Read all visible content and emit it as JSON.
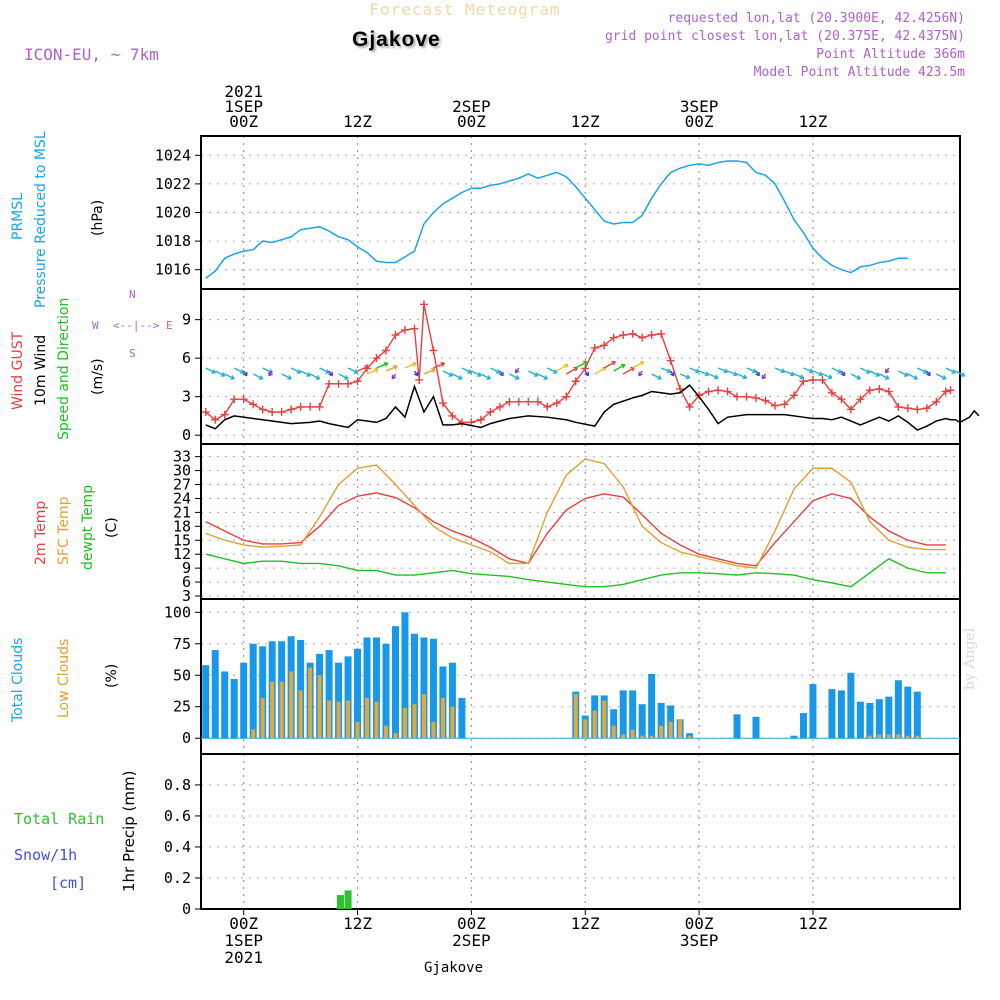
{
  "header": {
    "title": "Forecast Meteogram",
    "location": "Gjakove",
    "model": "ICON-EU, ~ 7km",
    "requested": "requested lon,lat (20.3900E, 42.4256N)",
    "grid_point": "grid point closest lon,lat (20.375E, 42.4375N)",
    "point_altitude": "Point Altitude 366m",
    "model_altitude": "Model Point Altitude 423.5m"
  },
  "footer": {
    "location": "Gjakove",
    "signature": "by Angel"
  },
  "time_axis": {
    "top": [
      {
        "t": 0,
        "lines": [
          "2021",
          "1SEP",
          "00Z"
        ]
      },
      {
        "t": 12,
        "lines": [
          "12Z"
        ]
      },
      {
        "t": 24,
        "lines": [
          "2SEP",
          "00Z"
        ]
      },
      {
        "t": 36,
        "lines": [
          "12Z"
        ]
      },
      {
        "t": 48,
        "lines": [
          "3SEP",
          "00Z"
        ]
      },
      {
        "t": 60,
        "lines": [
          "12Z"
        ]
      }
    ],
    "bottom": [
      {
        "t": 0,
        "lines": [
          "00Z",
          "1SEP",
          "2021"
        ]
      },
      {
        "t": 12,
        "lines": [
          "12Z"
        ]
      },
      {
        "t": 24,
        "lines": [
          "00Z",
          "2SEP"
        ]
      },
      {
        "t": 36,
        "lines": [
          "12Z"
        ]
      },
      {
        "t": 48,
        "lines": [
          "00Z",
          "3SEP"
        ]
      },
      {
        "t": 60,
        "lines": [
          "12Z"
        ]
      }
    ]
  },
  "labels": {
    "pressure": {
      "a": "PRMSL",
      "b": "Pressure Reduced to MSL",
      "unit": "(hPa)",
      "color_a": "#1aa3e8"
    },
    "wind": {
      "gust": "Wind GUST",
      "wind10": "10m Wind",
      "dir": "Speed and Direction",
      "unit": "(m/s)",
      "compass": {
        "n": "N",
        "s": "S",
        "w": "W",
        "e": "E",
        "arrows": "<--|-->"
      }
    },
    "temp": {
      "t2m": "2m Temp",
      "sfc": "SFC Temp",
      "dew": "dewpt Temp",
      "unit": "(C)"
    },
    "clouds": {
      "total": "Total Clouds",
      "low": "Low Clouds",
      "unit": "(%)"
    },
    "precip": {
      "rain": "Total  Rain",
      "snow": "Snow/1h",
      "cm": "[cm]",
      "axis": "1hr Precip (mm)"
    }
  },
  "colors": {
    "pressure": "#1aa3e8",
    "gust": "#e84040",
    "wind": "#000000",
    "t2m": "#e84040",
    "sfc": "#e0a030",
    "dew": "#20c020",
    "total_clouds": "#1898e8",
    "low_clouds": "#e0a840",
    "rain": "#30c030",
    "snow_label": "#4050e0",
    "compass": "#b060d0"
  },
  "chart_data": [
    {
      "type": "line",
      "title": "PRMSL Pressure Reduced to MSL",
      "ylabel": "(hPa)",
      "ylim": [
        1015,
        1025
      ],
      "yticks": [
        1016,
        1018,
        1020,
        1022,
        1024
      ],
      "x_hours_from_1SEP_00Z": [
        -4,
        -3,
        -2,
        -1,
        0,
        1,
        2,
        3,
        4,
        5,
        6,
        7,
        8,
        9,
        10,
        11,
        12,
        13,
        14,
        15,
        16,
        17,
        18,
        19,
        20,
        21,
        22,
        23,
        24,
        25,
        26,
        27,
        28,
        29,
        30,
        31,
        32,
        33,
        34,
        35,
        36,
        37,
        38,
        39,
        40,
        41,
        42,
        43,
        44,
        45,
        46,
        47,
        48,
        49,
        50,
        51,
        52,
        53,
        54,
        55,
        56,
        57,
        58,
        59,
        60,
        61,
        62,
        63,
        64,
        65,
        66,
        67,
        68,
        69,
        70,
        71,
        72,
        73,
        74
      ],
      "series": [
        {
          "values": [
            1015.4,
            1015.9,
            1016.8,
            1017.1,
            1017.3,
            1017.4,
            1018.0,
            1017.9,
            1018.1,
            1018.3,
            1018.8,
            1018.9,
            1019.0,
            1018.7,
            1018.3,
            1018.1,
            1017.6,
            1017.2,
            1016.6,
            1016.5,
            1016.5,
            1016.9,
            1017.3,
            1019.2,
            1020.0,
            1020.6,
            1021.0,
            1021.4,
            1021.7,
            1021.7,
            1021.9,
            1022.0,
            1022.2,
            1022.4,
            1022.7,
            1022.4,
            1022.6,
            1022.8,
            1022.5,
            1021.8,
            1021.0,
            1020.2,
            1019.4,
            1019.2,
            1019.3,
            1019.3,
            1019.8,
            1021.0,
            1022.0,
            1022.8,
            1023.1,
            1023.3,
            1023.4,
            1023.3,
            1023.5,
            1023.6,
            1023.6,
            1023.5,
            1022.8,
            1022.6,
            1022.0,
            1020.8,
            1019.5,
            1018.6,
            1017.5,
            1016.8,
            1016.3,
            1016.0,
            1015.8,
            1016.2,
            1016.3,
            1016.5,
            1016.6,
            1016.8,
            1016.8
          ]
        }
      ]
    },
    {
      "type": "line",
      "title": "Wind GUST / 10m Wind Speed and Direction",
      "ylabel": "(m/s)",
      "ylim": [
        -0.3,
        11
      ],
      "yticks": [
        0,
        3,
        6,
        9
      ],
      "x_hours_from_1SEP_00Z": [
        -4,
        -3,
        -2,
        -1,
        0,
        1,
        2,
        3,
        4,
        5,
        6,
        7,
        8,
        9,
        10,
        11,
        12,
        13,
        14,
        15,
        16,
        17,
        18,
        19,
        20,
        21,
        22,
        23,
        24,
        25,
        26,
        27,
        28,
        29,
        30,
        31,
        32,
        33,
        34,
        35,
        36,
        37,
        38,
        39,
        40,
        41,
        42,
        43,
        44,
        45,
        46,
        47,
        48,
        49,
        50,
        51,
        52,
        53,
        54,
        55,
        56,
        57,
        58,
        59,
        60,
        61,
        62,
        63,
        64,
        65,
        66,
        67,
        68,
        69,
        70,
        71,
        72,
        73,
        74
      ],
      "series": [
        {
          "name": "Wind GUST",
          "values": [
            1.8,
            1.2,
            1.6,
            2.8,
            2.8,
            2.4,
            2.0,
            1.8,
            1.8,
            2.0,
            2.2,
            2.2,
            2.2,
            4.0,
            4.0,
            4.0,
            4.2,
            5.2,
            6.0,
            6.6,
            7.8,
            8.2,
            8.3,
            4.3,
            10.2,
            6.6,
            2.5,
            1.5,
            1.0,
            1.0,
            1.2,
            1.8,
            2.2,
            2.6,
            2.6,
            2.6,
            2.6,
            2.2,
            2.5,
            3.0,
            4.2,
            5.2,
            6.8,
            7.0,
            7.6,
            7.8,
            7.9,
            7.6,
            7.8,
            7.9,
            5.8,
            3.6,
            2.2,
            3.1,
            3.4,
            3.5,
            3.4,
            3.0,
            3.0,
            2.9,
            2.7,
            2.3,
            2.4,
            3.1,
            4.2,
            4.3,
            4.3,
            3.3,
            2.8,
            2.0,
            2.8,
            3.5,
            3.6,
            3.4,
            2.2,
            2.1,
            2.0,
            2.1,
            2.6,
            3.4,
            3.5
          ],
          "x_hours_from_1SEP_00Z_gust": [
            -4,
            -3,
            -2,
            -1,
            0,
            1,
            2,
            3,
            4,
            5,
            6,
            7,
            8,
            9,
            10,
            11,
            12,
            13,
            14,
            15,
            16,
            17,
            18,
            18.5,
            19,
            20,
            21,
            22,
            23,
            24,
            25,
            26,
            27,
            28,
            29,
            30,
            31,
            32,
            33,
            34,
            35,
            36,
            37,
            38,
            39,
            40,
            41,
            42,
            43,
            44,
            45,
            46,
            47,
            48,
            49,
            50,
            51,
            52,
            53,
            54,
            55,
            56,
            57,
            58,
            59,
            60,
            61,
            62,
            63,
            64,
            65,
            66,
            67,
            68,
            69,
            70,
            71,
            72,
            73,
            74,
            74.5
          ]
        },
        {
          "name": "10m Wind",
          "values": [
            0.8,
            0.5,
            1.2,
            1.5,
            1.3,
            1.1,
            0.9,
            1.0,
            1.1,
            0.9,
            0.6,
            1.2,
            1.1,
            1.0,
            1.3,
            2.2,
            1.4,
            3.8,
            1.8,
            3.0,
            0.8,
            0.8,
            0.9,
            0.6,
            0.9,
            1.3,
            1.5,
            1.4,
            1.3,
            1.2,
            1.0,
            0.7,
            1.8,
            2.4,
            2.9,
            3.1,
            3.4,
            3.3,
            3.2,
            3.3,
            3.9,
            3.0,
            2.0,
            0.9,
            1.4,
            1.6,
            1.6,
            1.6,
            1.4,
            1.3,
            1.3,
            1.2,
            1.4,
            1.1,
            0.8,
            1.1,
            1.4,
            1.1,
            1.5,
            1.0,
            0.4,
            0.7,
            1.1,
            1.3,
            1.2,
            1.2,
            1.0,
            1.2,
            1.4,
            1.9,
            1.5
          ],
          "x_hours_from_1SEP_00Z_wind": [
            -4,
            -3,
            -2,
            -1,
            1,
            3,
            5,
            7,
            8,
            9,
            11,
            12,
            13,
            14,
            15,
            16,
            17,
            18,
            19,
            20,
            21,
            22,
            23,
            25,
            26,
            28,
            30,
            32,
            33,
            34,
            35,
            37,
            38,
            39,
            41,
            42,
            43,
            44,
            45,
            46,
            47,
            48,
            49,
            50,
            51,
            53,
            55,
            57,
            59,
            60,
            61,
            62,
            63,
            64,
            65,
            66,
            67,
            68,
            69,
            70,
            71,
            72,
            73,
            74,
            74.5,
            75,
            75.5,
            76,
            76.5,
            77,
            77.5
          ]
        }
      ]
    },
    {
      "type": "line",
      "title": "2m Temp / SFC Temp / dewpt Temp",
      "ylabel": "(C)",
      "ylim": [
        3,
        34
      ],
      "yticks": [
        3,
        6,
        9,
        12,
        15,
        18,
        21,
        24,
        27,
        30,
        33
      ],
      "x_hours_from_1SEP_00Z": [
        -4,
        -2,
        0,
        2,
        4,
        6,
        8,
        10,
        12,
        14,
        16,
        18,
        20,
        22,
        24,
        26,
        28,
        30,
        32,
        34,
        36,
        38,
        40,
        42,
        44,
        46,
        48,
        50,
        52,
        54,
        56,
        58,
        60,
        62,
        64,
        66,
        68,
        70,
        72,
        74
      ],
      "series": [
        {
          "name": "2m Temp",
          "values": [
            19.0,
            17.0,
            15.0,
            14.2,
            14.2,
            14.5,
            18.0,
            22.5,
            24.5,
            25.2,
            24.2,
            22.0,
            19.0,
            17.0,
            15.5,
            13.5,
            11.0,
            10.0,
            16.5,
            21.5,
            24.0,
            25.0,
            24.3,
            20.5,
            16.5,
            14.0,
            12.0,
            11.0,
            10.0,
            9.5,
            14.5,
            19.0,
            23.5,
            25.0,
            24.0,
            20.0,
            17.0,
            15.0,
            14.0,
            14.0
          ]
        },
        {
          "name": "SFC Temp",
          "values": [
            16.5,
            15.0,
            14.0,
            13.5,
            13.7,
            14.0,
            20.0,
            27.0,
            30.5,
            31.2,
            27.0,
            22.5,
            18.0,
            15.5,
            14.0,
            12.5,
            10.0,
            10.0,
            21.0,
            29.0,
            32.5,
            31.5,
            26.5,
            18.0,
            14.5,
            12.5,
            11.5,
            10.5,
            9.5,
            9.0,
            17.0,
            26.0,
            30.5,
            30.5,
            27.5,
            19.0,
            15.0,
            13.5,
            13.0,
            13.0
          ]
        },
        {
          "name": "dewpt Temp",
          "values": [
            12.0,
            11.0,
            10.0,
            10.5,
            10.5,
            10.0,
            10.0,
            9.5,
            8.5,
            8.5,
            7.5,
            7.5,
            8.0,
            8.5,
            7.8,
            7.5,
            7.2,
            6.5,
            6.0,
            5.5,
            5.0,
            5.0,
            5.5,
            6.5,
            7.5,
            8.0,
            8.0,
            7.8,
            7.5,
            8.0,
            7.8,
            7.5,
            6.5,
            5.8,
            5.0,
            8.0,
            11.0,
            9.0,
            8.0,
            8.0
          ]
        }
      ]
    },
    {
      "type": "bar",
      "title": "Total Clouds / Low Clouds",
      "ylabel": "(%)",
      "ylim": [
        -3,
        105
      ],
      "yticks": [
        0,
        25,
        50,
        75,
        100
      ],
      "x_hours_from_1SEP_00Z": [
        -4,
        -3,
        -2,
        -1,
        0,
        1,
        2,
        3,
        4,
        5,
        6,
        7,
        8,
        9,
        10,
        11,
        12,
        13,
        14,
        15,
        16,
        17,
        18,
        19,
        20,
        21,
        22,
        23,
        24,
        25,
        26,
        27,
        28,
        29,
        30,
        31,
        32,
        33,
        34,
        35,
        36,
        37,
        38,
        39,
        40,
        41,
        42,
        43,
        44,
        45,
        46,
        47,
        48,
        49,
        50,
        51,
        52,
        53,
        54,
        55,
        56,
        57,
        58,
        59,
        60,
        61,
        62,
        63,
        64,
        65,
        66,
        67,
        68,
        69,
        70,
        71,
        72,
        73,
        74,
        75
      ],
      "series": [
        {
          "name": "Total Clouds",
          "values": [
            58,
            70,
            53,
            47,
            60,
            75,
            73,
            77,
            77,
            81,
            78,
            60,
            67,
            70,
            60,
            65,
            71,
            80,
            80,
            75,
            89,
            100,
            83,
            80,
            79,
            57,
            60,
            32,
            0,
            0,
            0,
            0,
            0,
            0,
            0,
            0,
            0,
            0,
            0,
            37,
            18,
            34,
            34,
            23,
            38,
            38,
            27,
            51,
            28,
            26,
            15,
            4,
            0,
            0,
            0,
            0,
            19,
            0,
            17,
            0,
            0,
            0,
            2,
            20,
            43,
            0,
            39,
            38,
            52,
            29,
            28,
            31,
            33,
            46,
            41,
            37
          ]
        },
        {
          "name": "Low Clouds",
          "values": [
            0,
            0,
            0,
            0,
            0,
            7,
            32,
            45,
            45,
            53,
            38,
            56,
            50,
            30,
            29,
            30,
            13,
            32,
            29,
            10,
            4,
            24,
            27,
            35,
            13,
            32,
            25,
            0,
            0,
            0,
            0,
            0,
            0,
            0,
            0,
            0,
            0,
            0,
            0,
            35,
            15,
            22,
            30,
            10,
            3,
            7,
            2,
            2,
            10,
            13,
            15,
            2,
            0,
            0,
            0,
            0,
            0,
            0,
            0,
            0,
            0,
            0,
            0,
            0,
            0,
            0,
            0,
            0,
            0,
            0,
            2,
            3,
            3,
            3,
            2,
            2
          ]
        }
      ]
    },
    {
      "type": "bar",
      "title": "Total Rain / Snow/1h",
      "ylabel": "1hr Precip (mm)",
      "ylim": [
        0,
        0.98
      ],
      "yticks": [
        0,
        0.2,
        0.4,
        0.6,
        0.8
      ],
      "x_hours_from_1SEP_00Z": [
        10.2,
        11
      ],
      "series": [
        {
          "name": "Total Rain",
          "values": [
            0.09,
            0.12
          ]
        },
        {
          "name": "Snow/1h [cm]",
          "values": [
            0,
            0
          ]
        }
      ]
    }
  ]
}
